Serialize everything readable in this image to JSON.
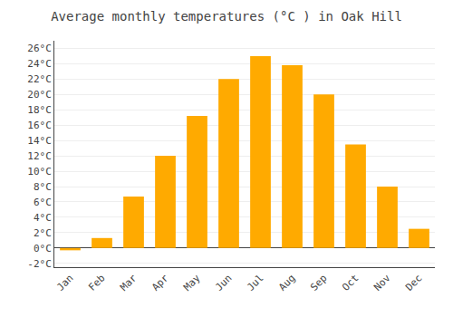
{
  "chart_data": {
    "type": "bar",
    "title": "Average monthly temperatures (°C ) in Oak Hill",
    "categories": [
      "Jan",
      "Feb",
      "Mar",
      "Apr",
      "May",
      "Jun",
      "Jul",
      "Aug",
      "Sep",
      "Oct",
      "Nov",
      "Dec"
    ],
    "values": [
      -0.3,
      1.3,
      6.7,
      12.0,
      17.2,
      22.0,
      25.0,
      23.8,
      20.0,
      13.5,
      8.0,
      2.5
    ],
    "color": "#FFAA00",
    "ylim": [
      -2.5,
      27
    ],
    "yticks": [
      {
        "value": -2,
        "label": "-2°C"
      },
      {
        "value": 0,
        "label": "0°C"
      },
      {
        "value": 2,
        "label": "2°C"
      },
      {
        "value": 4,
        "label": "4°C"
      },
      {
        "value": 6,
        "label": "6°C"
      },
      {
        "value": 8,
        "label": "8°C"
      },
      {
        "value": 10,
        "label": "10°C"
      },
      {
        "value": 12,
        "label": "12°C"
      },
      {
        "value": 14,
        "label": "14°C"
      },
      {
        "value": 16,
        "label": "16°C"
      },
      {
        "value": 18,
        "label": "18°C"
      },
      {
        "value": 20,
        "label": "20°C"
      },
      {
        "value": 22,
        "label": "22°C"
      },
      {
        "value": 24,
        "label": "24°C"
      },
      {
        "value": 26,
        "label": "26°C"
      }
    ],
    "grid": true
  }
}
